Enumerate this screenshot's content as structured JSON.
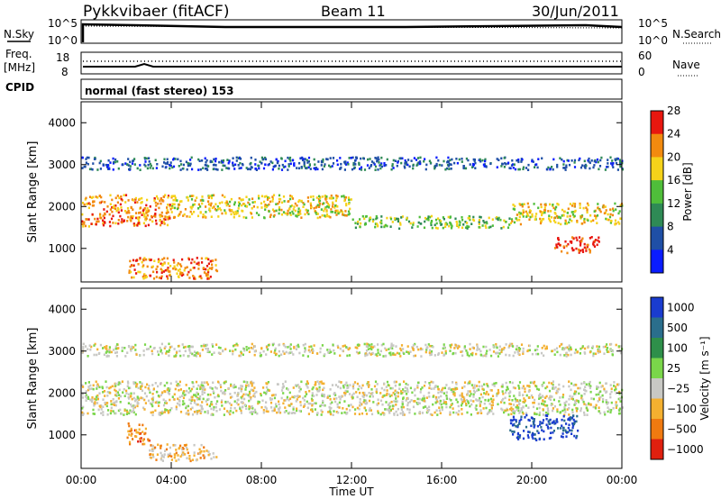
{
  "header": {
    "station": "Pykkvibaer (fitACF)",
    "beam": "Beam 11",
    "date": "30/Jun/2011"
  },
  "mini_panels": {
    "noise_left_label": "N.Sky",
    "noise_right_label": "N.Search",
    "noise_ticks": [
      "10^5",
      "10^0"
    ],
    "freq_left_label_1": "Freq.",
    "freq_left_label_2": "[MHz]",
    "freq_ticks": [
      "18",
      "8"
    ],
    "nave_label": "Nave",
    "nave_ticks": [
      "60",
      "0"
    ],
    "cpid_label": "CPID",
    "cpid_text": "normal (fast stereo) 153"
  },
  "chart_data": [
    {
      "type": "heatmap",
      "name": "power",
      "ylabel": "Slant Range [km]",
      "ylim": [
        200,
        4500
      ],
      "yticks": [
        "1000",
        "2000",
        "3000",
        "4000"
      ],
      "colorbar_label": "Power [dB]",
      "colorbar_ticks": [
        "4",
        "8",
        "12",
        "16",
        "20",
        "24",
        "28"
      ],
      "colorbar_colors": [
        "#0a1cff",
        "#1f4fa6",
        "#2e8a55",
        "#4fbe3a",
        "#f5d21a",
        "#f28a0f",
        "#e8170f"
      ],
      "bands": [
        {
          "t0": 0,
          "t1": 4,
          "r0": 1550,
          "r1": 2300,
          "level": 5
        },
        {
          "t0": 4,
          "t1": 12,
          "r0": 1750,
          "r1": 2300,
          "level": 4
        },
        {
          "t0": 12,
          "t1": 19,
          "r0": 1500,
          "r1": 1800,
          "level": 3
        },
        {
          "t0": 19,
          "t1": 24,
          "r0": 1600,
          "r1": 2100,
          "level": 4
        },
        {
          "t0": 21,
          "t1": 23,
          "r0": 900,
          "r1": 1300,
          "level": 6
        },
        {
          "t0": 2,
          "t1": 6,
          "r0": 300,
          "r1": 800,
          "level": 5
        },
        {
          "t0": 0,
          "t1": 24,
          "r0": 2900,
          "r1": 3200,
          "level": 1
        }
      ]
    },
    {
      "type": "heatmap",
      "name": "velocity",
      "ylabel": "Slant Range [km]",
      "ylim": [
        200,
        4500
      ],
      "yticks": [
        "1000",
        "2000",
        "3000",
        "4000"
      ],
      "colorbar_label": "Velocity [m s⁻¹]",
      "colorbar_ticks": [
        "1000",
        "500",
        "100",
        "25",
        "−25",
        "−100",
        "−500",
        "−1000"
      ],
      "colorbar_colors": [
        "#1a3ccf",
        "#2a6e8c",
        "#2e8f4a",
        "#7ad64a",
        "#c8c8c4",
        "#f4b030",
        "#f07a10",
        "#e0200f"
      ],
      "bands": [
        {
          "t0": 0,
          "t1": 24,
          "r0": 1500,
          "r1": 2300,
          "level": 4
        },
        {
          "t0": 19,
          "t1": 22,
          "r0": 900,
          "r1": 1500,
          "level": 0
        },
        {
          "t0": 2,
          "t1": 3,
          "r0": 800,
          "r1": 1300,
          "level": 6
        },
        {
          "t0": 3,
          "t1": 6,
          "r0": 400,
          "r1": 800,
          "level": 5
        },
        {
          "t0": 0,
          "t1": 24,
          "r0": 2900,
          "r1": 3200,
          "level": 4
        }
      ]
    }
  ],
  "xaxis": {
    "label": "Time UT",
    "ticks": [
      "00:00",
      "04:00",
      "08:00",
      "12:00",
      "16:00",
      "20:00",
      "00:00"
    ]
  }
}
